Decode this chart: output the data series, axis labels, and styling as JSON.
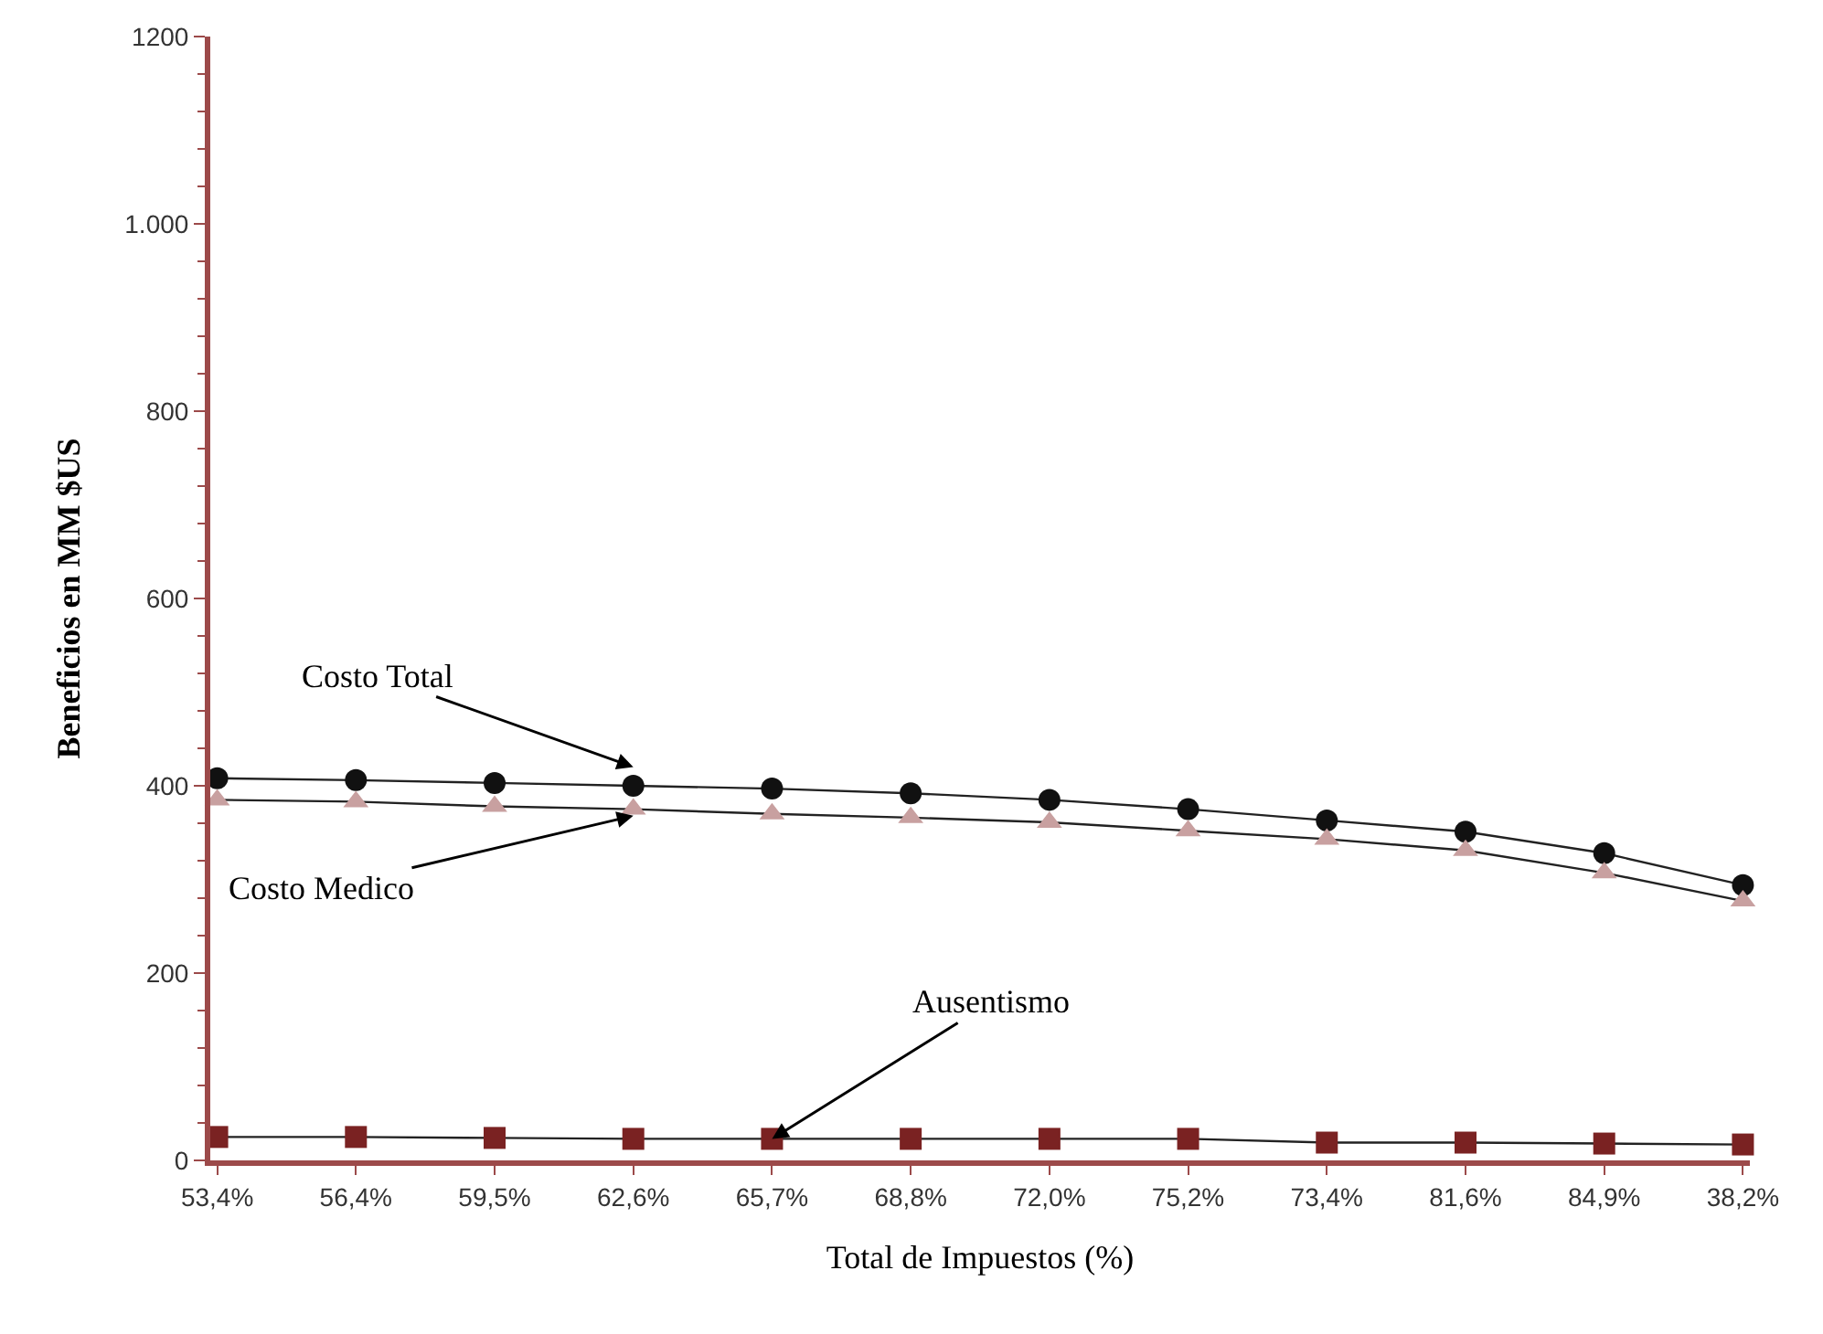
{
  "chart_data": {
    "type": "line",
    "xlabel": "Total de Impuestos (%)",
    "ylabel": "Beneficios en MM $US",
    "categories": [
      "53,4%",
      "56,4%",
      "59,5%",
      "62,6%",
      "65,7%",
      "68,8%",
      "72,0%",
      "75,2%",
      "73,4%",
      "81,6%",
      "84,9%",
      "38,2%"
    ],
    "series": [
      {
        "color": "#111111",
        "marker": "circle",
        "values": [
          408,
          406,
          403,
          400,
          397,
          392,
          385,
          375,
          363,
          351,
          328,
          294
        ]
      },
      {
        "color": "#c8a0a0",
        "marker": "triangle",
        "values": [
          385,
          383,
          378,
          375,
          370,
          366,
          361,
          352,
          343,
          331,
          307,
          277
        ]
      },
      {
        "color": "#7a2222",
        "marker": "square",
        "values": [
          25,
          25,
          24,
          23,
          23,
          23,
          23,
          23,
          19,
          19,
          18,
          17
        ]
      }
    ],
    "ylim": [
      0,
      1200
    ],
    "yticks": [
      0,
      200,
      400,
      600,
      800,
      {
        "value": 1000,
        "label": "1.000"
      },
      1200
    ],
    "grid": false,
    "line_style": "solid",
    "annotations": [
      {
        "text": "Costo Total",
        "x": "62,6%",
        "y": 420
      },
      {
        "text": "Costo Medico",
        "x": "62,6%",
        "y": 368
      },
      {
        "text": "Ausentismo",
        "x": "65,7%",
        "y": 23
      }
    ]
  }
}
